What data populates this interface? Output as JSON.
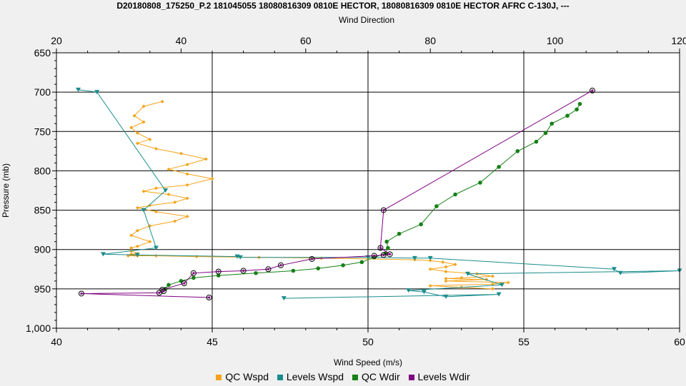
{
  "chart_data": {
    "type": "scatter",
    "title": "D20180808_175250_P.2 181045055 18080816309 0810E HECTOR, 18080816309 0810E HECTOR AFRC C-130J, ---",
    "top_axis_label": "Wind Direction",
    "xlabel": "Wind Speed (m/s)",
    "ylabel": "Pressure (mb)",
    "grid": true,
    "legend_position": "bottom",
    "x_bottom": {
      "min": 40,
      "max": 60,
      "ticks": [
        "40",
        "45",
        "50",
        "55",
        "60"
      ],
      "tick_values": [
        40,
        45,
        50,
        55,
        60
      ]
    },
    "x_top": {
      "min": 20,
      "max": 120,
      "ticks": [
        "20",
        "40",
        "60",
        "80",
        "100",
        "120"
      ],
      "tick_values": [
        20,
        40,
        60,
        80,
        100,
        120
      ]
    },
    "y": {
      "min": 650,
      "max": 1000,
      "reversed": true,
      "ticks": [
        "650",
        "700",
        "750",
        "800",
        "850",
        "900",
        "950",
        "1,000"
      ],
      "tick_values": [
        650,
        700,
        750,
        800,
        850,
        900,
        950,
        1000
      ]
    },
    "series": [
      {
        "name": "QC Wspd",
        "color": "#f5a31a",
        "axis": "bottom",
        "marker": "diamond",
        "x": [
          43.4,
          42.8,
          42.5,
          42.8,
          42.4,
          42.6,
          43.0,
          42.6,
          43.2,
          44.0,
          44.8,
          44.2,
          43.6,
          44.2,
          45.0,
          44.2,
          43.2,
          42.8,
          43.6,
          44.2,
          43.8,
          43.0,
          42.6,
          43.2,
          44.2,
          43.8,
          43.0,
          42.6,
          42.4,
          43.0,
          42.6,
          42.4,
          42.4,
          42.6,
          42.4,
          42.5,
          42.3,
          42.6,
          43.2,
          44.5,
          46.5,
          48.5,
          50.0,
          51.5,
          52.0,
          52.4,
          52.8,
          52.5,
          52.0,
          52.5,
          53.5,
          54.0,
          53.0,
          52.5,
          53.8,
          52.5,
          54.5,
          54.0,
          52.0,
          53.0,
          54.0
        ],
        "y": [
          712,
          718,
          730,
          738,
          745,
          752,
          760,
          765,
          772,
          778,
          785,
          792,
          798,
          804,
          810,
          818,
          822,
          826,
          830,
          835,
          840,
          844,
          847,
          852,
          858,
          864,
          870,
          876,
          882,
          890,
          896,
          898,
          902,
          905,
          906,
          907,
          908,
          908,
          908,
          909,
          910,
          911,
          912,
          913,
          914,
          916,
          919,
          922,
          925,
          928,
          931,
          934,
          936,
          937,
          938,
          940,
          942,
          944,
          946,
          948,
          950
        ]
      },
      {
        "name": "Levels Wspd",
        "color": "#1a8c8c",
        "axis": "bottom",
        "marker": "triangle",
        "x": [
          40.7,
          41.3,
          43.5,
          42.8,
          43.2,
          41.5,
          42.6,
          45.8,
          45.9,
          50.0,
          51.5,
          52.0,
          57.9,
          58.1,
          60.0,
          53.2,
          54.3,
          51.3,
          51.8,
          52.5,
          54.2,
          47.3
        ],
        "y": [
          697,
          700,
          825,
          850,
          898,
          906,
          907,
          909,
          910,
          910,
          911,
          911,
          925,
          930,
          927,
          931,
          945,
          952,
          954,
          960,
          957,
          962
        ]
      },
      {
        "name": "QC Wdir",
        "color": "#168016",
        "axis": "top",
        "marker": "circle",
        "x": [
          104.0,
          103.5,
          102.0,
          99.5,
          98.5,
          97.0,
          94.0,
          91.0,
          88.0,
          84.0,
          81.0,
          78.5,
          75.0,
          73.0,
          73.2,
          72.8,
          71.0,
          69.0,
          66.0,
          62.0,
          58.0,
          52.0,
          46.0,
          42.0,
          40.0,
          38.0,
          37.5
        ],
        "y": [
          715,
          722,
          730,
          740,
          752,
          763,
          775,
          795,
          815,
          830,
          845,
          868,
          880,
          890,
          898,
          905,
          910,
          916,
          920,
          924,
          927,
          930,
          933,
          936,
          940,
          945,
          950
        ]
      },
      {
        "name": "Levels Wdir",
        "color": "#800080",
        "axis": "top",
        "marker": "circle",
        "x": [
          106.0,
          72.5,
          72.0,
          73.5,
          72.5,
          71.0,
          61.0,
          56.0,
          54.0,
          50.0,
          46.0,
          42.0,
          40.5,
          37.0,
          37.2,
          36.5,
          24.0,
          44.5
        ],
        "y": [
          698,
          850,
          898,
          906,
          907,
          908,
          912,
          920,
          925,
          927,
          928,
          930,
          943,
          951,
          953,
          955,
          956,
          961
        ]
      }
    ]
  }
}
